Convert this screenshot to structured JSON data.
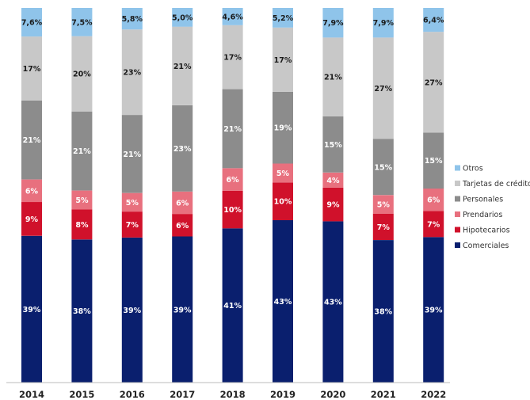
{
  "chart_data": {
    "type": "bar",
    "stacked": true,
    "normalized": true,
    "categories": [
      "2014",
      "2015",
      "2016",
      "2017",
      "2018",
      "2019",
      "2020",
      "2021",
      "2022"
    ],
    "series": [
      {
        "name": "Comerciales",
        "color": "#0a1f6e",
        "text_color": "#ffffff",
        "values": [
          39,
          38,
          39,
          39,
          41,
          43,
          43,
          38,
          39
        ],
        "labels": [
          "39%",
          "38%",
          "39%",
          "39%",
          "41%",
          "43%",
          "43%",
          "38%",
          "39%"
        ]
      },
      {
        "name": "Hipotecarios",
        "color": "#d0112b",
        "text_color": "#ffffff",
        "values": [
          9,
          8,
          7,
          6,
          10,
          10,
          9,
          7,
          7
        ],
        "labels": [
          "9%",
          "8%",
          "7%",
          "6%",
          "10%",
          "10%",
          "9%",
          "7%",
          "7%"
        ]
      },
      {
        "name": "Prendarios",
        "color": "#e8707e",
        "text_color": "#ffffff",
        "values": [
          6,
          5,
          5,
          6,
          6,
          5,
          4,
          5,
          6
        ],
        "labels": [
          "6%",
          "5%",
          "5%",
          "6%",
          "6%",
          "5%",
          "4%",
          "5%",
          "6%"
        ]
      },
      {
        "name": "Personales",
        "color": "#8c8c8c",
        "text_color": "#ffffff",
        "values": [
          21,
          21,
          21,
          23,
          21,
          19,
          15,
          15,
          15
        ],
        "labels": [
          "21%",
          "21%",
          "21%",
          "23%",
          "21%",
          "19%",
          "15%",
          "15%",
          "15%"
        ]
      },
      {
        "name": "Tarjetas de crédito",
        "color": "#c8c8c8",
        "text_color": "#1a1a1a",
        "values": [
          17,
          20,
          23,
          21,
          17,
          17,
          21,
          27,
          27
        ],
        "labels": [
          "17%",
          "20%",
          "23%",
          "21%",
          "17%",
          "17%",
          "21%",
          "27%",
          "27%"
        ]
      },
      {
        "name": "Otros",
        "color": "#8fc4ea",
        "text_color": "#1a1a1a",
        "values": [
          7.6,
          7.5,
          5.8,
          5.0,
          4.6,
          5.2,
          7.9,
          7.9,
          6.4
        ],
        "labels": [
          "7,6%",
          "7,5%",
          "5,8%",
          "5,0%",
          "4,6%",
          "5,2%",
          "7,9%",
          "7,9%",
          "6,4%"
        ]
      }
    ],
    "legend_order": [
      "Otros",
      "Tarjetas de crédito",
      "Personales",
      "Prendarios",
      "Hipotecarios",
      "Comerciales"
    ],
    "legend_position": "right",
    "grid": false
  }
}
